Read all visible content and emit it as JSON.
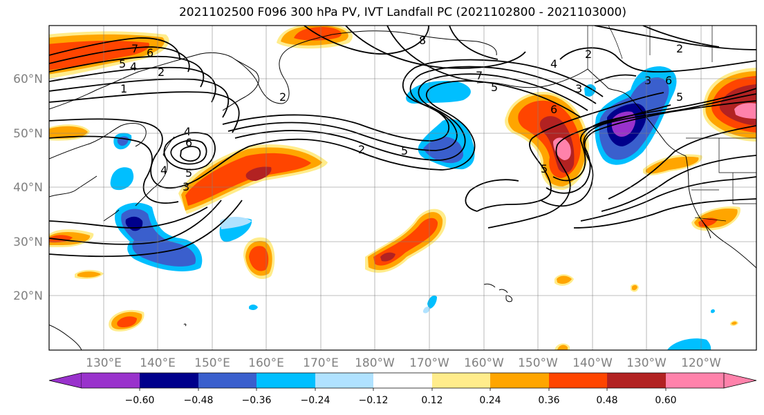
{
  "title": "2021102500 F096 300 hPa PV, IVT Landfall PC (2021102800 - 2021103000)",
  "lat_labels": [
    "60°N",
    "50°N",
    "40°N",
    "30°N",
    "20°N"
  ],
  "lon_labels": [
    "130°E",
    "140°E",
    "150°E",
    "160°E",
    "170°E",
    "180°W",
    "170°W",
    "160°W",
    "150°W",
    "140°W",
    "130°W",
    "120°W"
  ],
  "colorbar": {
    "tick_labels": [
      "−0.60",
      "−0.48",
      "−0.36",
      "−0.24",
      "−0.12",
      "0.12",
      "0.24",
      "0.36",
      "0.48",
      "0.60"
    ],
    "colors": [
      "#9932CC",
      "#00008B",
      "#3A5FCD",
      "#00BFFF",
      "#B0E2FF",
      "#FFFFFF",
      "#FFEC8B",
      "#FFA500",
      "#FF4500",
      "#B22222",
      "#FF82AB"
    ]
  },
  "contour_labels": [
    "7",
    "6",
    "5",
    "4",
    "2",
    "1",
    "8",
    "7",
    "6",
    "5",
    "4",
    "3",
    "2",
    "3",
    "6",
    "5",
    "2",
    "4",
    "6",
    "5",
    "3",
    "2",
    "5",
    "2",
    "5",
    "4"
  ]
}
